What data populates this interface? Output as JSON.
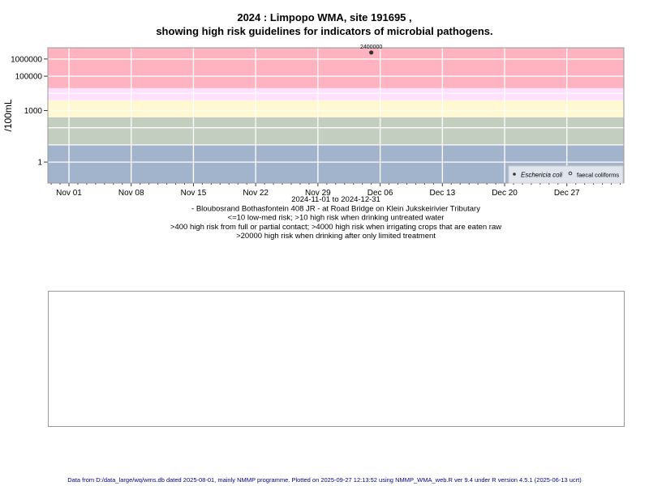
{
  "chart_data": {
    "type": "scatter",
    "title": [
      "2024 : Limpopo WMA, site 191695 ,",
      "showing high risk guidelines for indicators of microbial pathogens."
    ],
    "ylabel": "/100mL",
    "yscale": "log",
    "ylim": [
      0.06,
      4500000
    ],
    "xlim": [
      "2024-10-29",
      "2025-01-03"
    ],
    "yticks": [
      {
        "v": 1,
        "label": "1"
      },
      {
        "v": 1000,
        "label": "1000"
      },
      {
        "v": 100000,
        "label": "100000"
      },
      {
        "v": 1000000,
        "label": "1000000"
      }
    ],
    "ygrid": [
      1,
      10,
      100,
      1000,
      10000,
      100000,
      1000000
    ],
    "xticks": [
      {
        "d": 0,
        "label": "Nov 01"
      },
      {
        "d": 7,
        "label": "Nov 08"
      },
      {
        "d": 14,
        "label": "Nov 15"
      },
      {
        "d": 21,
        "label": "Nov 22"
      },
      {
        "d": 28,
        "label": "Nov 29"
      },
      {
        "d": 35,
        "label": "Dec 06"
      },
      {
        "d": 42,
        "label": "Dec 13"
      },
      {
        "d": 49,
        "label": "Dec 20"
      },
      {
        "d": 56,
        "label": "Dec 27"
      }
    ],
    "bands": [
      {
        "from": 20000,
        "to": 4500000,
        "color": "#ffb3c0",
        "meaning": "high risk drinking after limited treatment"
      },
      {
        "from": 4000,
        "to": 20000,
        "color": "#ffe0ff"
      },
      {
        "from": 400,
        "to": 4000,
        "color": "#fff8d0"
      },
      {
        "from": 10,
        "to": 400,
        "color": "#c3cdc0"
      },
      {
        "from": 0.06,
        "to": 10,
        "color": "#a2b4cc"
      }
    ],
    "series": [
      {
        "name": "Eschericia coli",
        "marker": "filled",
        "points": [
          {
            "date": "2024-12-05",
            "day": 34,
            "value": 2400000,
            "label": "2400000"
          }
        ]
      },
      {
        "name": "faecal coliforms",
        "marker": "open",
        "points": []
      }
    ],
    "legend_position": "bottom-right",
    "subtitle_lines": [
      "2024-11-01 to 2024-12-31",
      "- Bloubosrand Bothasfontein 408 JR - at Road Bridge on Klein Jukskeirivier Tributary",
      "<=10 low-med risk; >10 high risk when drinking untreated water",
      ">400 high risk from full or partial contact; >4000 high risk when irrigating crops that are eaten raw",
      ">20000 high risk when drinking after only limited treatment"
    ]
  },
  "footer": "Data from D:/data_large/wq/wms.db dated 2025-08-01, mainly NMMP programme. Plotted on 2025-09-27 12:13:52 using NMMP_WMA_web.R ver 9.4 under R version 4.5.1 (2025-06-13 ucrt)"
}
